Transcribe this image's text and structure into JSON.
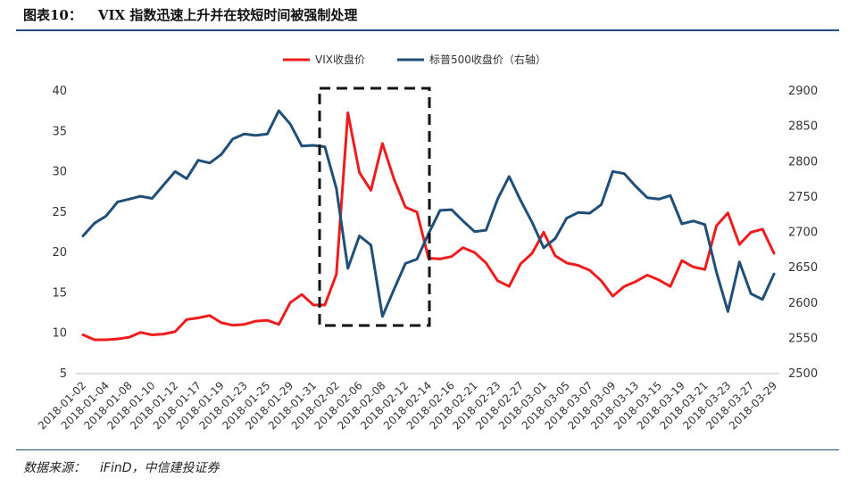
{
  "figure": {
    "label": "图表10：",
    "title": "VIX 指数迅速上升并在较短时间被强制处理"
  },
  "source": {
    "label": "数据来源：",
    "text": "iFinD，中信建投证券"
  },
  "colors": {
    "vix": "#ee1c1c",
    "spx": "#1f4e79",
    "rule": "#1f4e79",
    "highlight": "#111111"
  },
  "chart_data": {
    "type": "line",
    "legend_position": "top-center",
    "grid": false,
    "x": [
      "2018-01-02",
      "2018-01-03",
      "2018-01-04",
      "2018-01-05",
      "2018-01-08",
      "2018-01-09",
      "2018-01-10",
      "2018-01-11",
      "2018-01-12",
      "2018-01-16",
      "2018-01-17",
      "2018-01-18",
      "2018-01-19",
      "2018-01-22",
      "2018-01-23",
      "2018-01-24",
      "2018-01-25",
      "2018-01-26",
      "2018-01-29",
      "2018-01-30",
      "2018-01-31",
      "2018-02-01",
      "2018-02-02",
      "2018-02-05",
      "2018-02-06",
      "2018-02-07",
      "2018-02-08",
      "2018-02-09",
      "2018-02-12",
      "2018-02-13",
      "2018-02-14",
      "2018-02-15",
      "2018-02-16",
      "2018-02-20",
      "2018-02-21",
      "2018-02-22",
      "2018-02-23",
      "2018-02-26",
      "2018-02-27",
      "2018-02-28",
      "2018-03-01",
      "2018-03-02",
      "2018-03-05",
      "2018-03-06",
      "2018-03-07",
      "2018-03-08",
      "2018-03-09",
      "2018-03-12",
      "2018-03-13",
      "2018-03-14",
      "2018-03-15",
      "2018-03-16",
      "2018-03-19",
      "2018-03-20",
      "2018-03-21",
      "2018-03-22",
      "2018-03-23",
      "2018-03-26",
      "2018-03-27",
      "2018-03-28",
      "2018-03-29"
    ],
    "x_tick_labels": [
      "2018-01-02",
      "2018-01-04",
      "2018-01-08",
      "2018-01-10",
      "2018-01-12",
      "2018-01-17",
      "2018-01-19",
      "2018-01-23",
      "2018-01-25",
      "2018-01-29",
      "2018-01-31",
      "2018-02-02",
      "2018-02-06",
      "2018-02-08",
      "2018-02-12",
      "2018-02-14",
      "2018-02-16",
      "2018-02-21",
      "2018-02-23",
      "2018-02-27",
      "2018-03-01",
      "2018-03-05",
      "2018-03-07",
      "2018-03-09",
      "2018-03-13",
      "2018-03-15",
      "2018-03-19",
      "2018-03-21",
      "2018-03-23",
      "2018-03-27",
      "2018-03-29"
    ],
    "y_left": {
      "ylim": [
        5,
        40
      ],
      "ticks": [
        "5",
        "10",
        "15",
        "20",
        "25",
        "30",
        "35",
        "40"
      ]
    },
    "y_right": {
      "ylim": [
        2500,
        2900
      ],
      "ticks": [
        "2500",
        "2550",
        "2600",
        "2650",
        "2700",
        "2750",
        "2800",
        "2850",
        "2900"
      ]
    },
    "series": [
      {
        "name": "VIX收盘价",
        "axis": "left",
        "values": [
          9.8,
          9.2,
          9.2,
          9.3,
          9.5,
          10.1,
          9.8,
          9.9,
          10.2,
          11.7,
          11.9,
          12.2,
          11.3,
          11.0,
          11.1,
          11.5,
          11.6,
          11.1,
          13.8,
          14.8,
          13.5,
          13.5,
          17.3,
          37.3,
          29.9,
          27.7,
          33.5,
          29.1,
          25.6,
          25.0,
          19.3,
          19.2,
          19.5,
          20.6,
          20.0,
          18.7,
          16.5,
          15.8,
          18.6,
          19.9,
          22.5,
          19.6,
          18.7,
          18.4,
          17.8,
          16.5,
          14.6,
          15.8,
          16.4,
          17.2,
          16.6,
          15.8,
          19.0,
          18.2,
          17.9,
          23.3,
          24.9,
          21.0,
          22.5,
          22.9,
          19.9
        ]
      },
      {
        "name": "标普500收盘价（右轴）",
        "axis": "right",
        "values": [
          2695,
          2713,
          2723,
          2743,
          2747,
          2751,
          2748,
          2767,
          2786,
          2776,
          2802,
          2798,
          2810,
          2832,
          2839,
          2837,
          2839,
          2872,
          2853,
          2822,
          2823,
          2821,
          2762,
          2649,
          2695,
          2682,
          2581,
          2619,
          2656,
          2662,
          2698,
          2731,
          2732,
          2716,
          2701,
          2703,
          2747,
          2779,
          2745,
          2714,
          2678,
          2691,
          2720,
          2728,
          2727,
          2739,
          2786,
          2783,
          2765,
          2749,
          2747,
          2752,
          2712,
          2716,
          2711,
          2644,
          2588,
          2658,
          2613,
          2605,
          2641
        ]
      }
    ]
  }
}
